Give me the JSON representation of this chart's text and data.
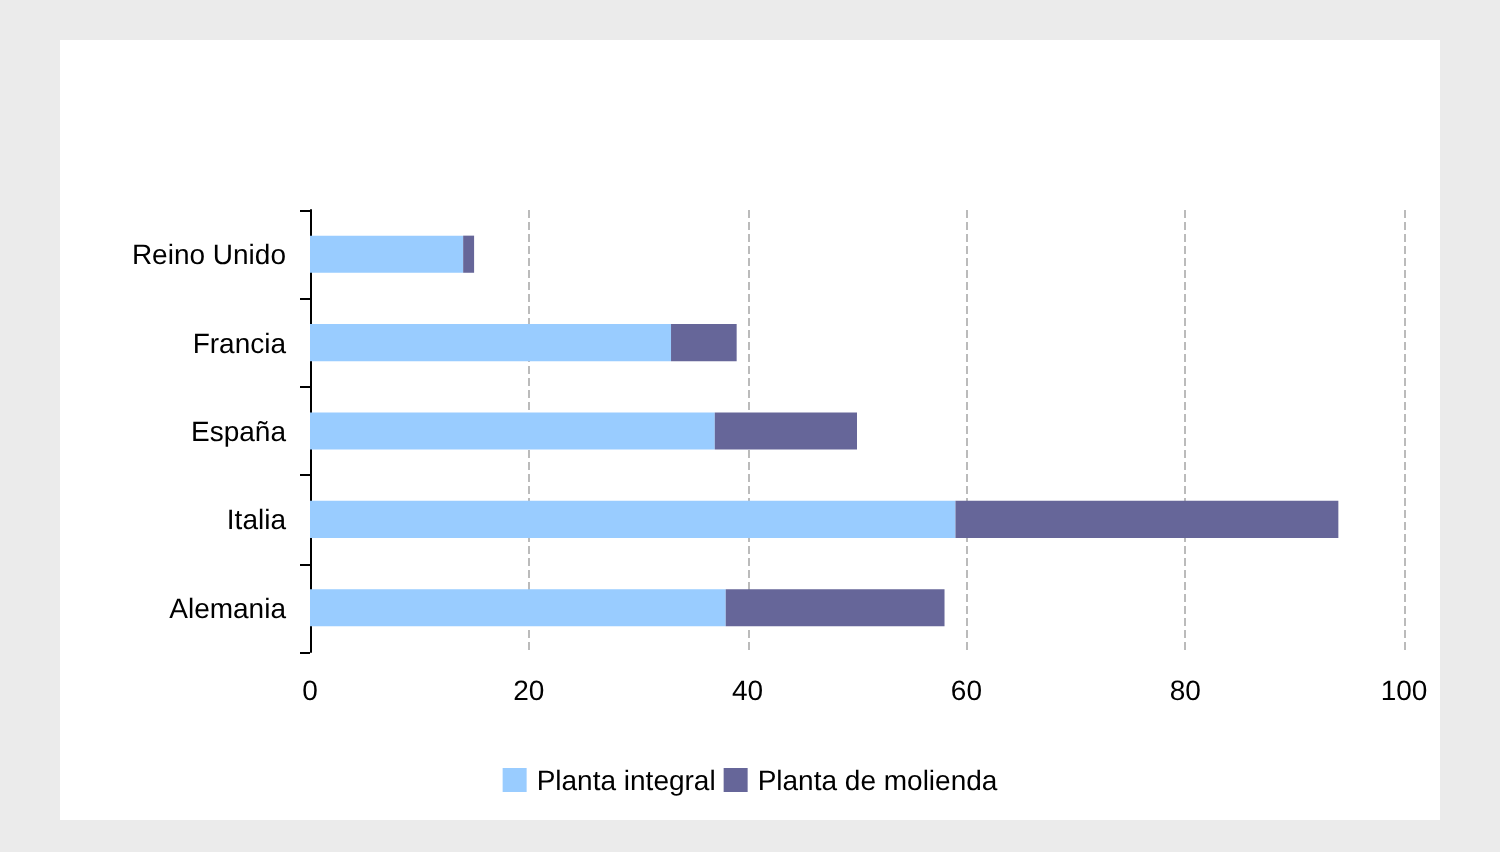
{
  "chart_data": {
    "type": "bar",
    "orientation": "horizontal",
    "stacked": true,
    "categories": [
      "Reino Unido",
      "Francia",
      "España",
      "Italia",
      "Alemania"
    ],
    "series": [
      {
        "name": "Planta integral",
        "color": "#99ccff",
        "values": [
          14,
          33,
          37,
          59,
          38
        ]
      },
      {
        "name": "Planta de molienda",
        "color": "#666699",
        "values": [
          1,
          6,
          13,
          35,
          20
        ]
      }
    ],
    "xlim": [
      0,
      100
    ],
    "xticks": [
      0,
      20,
      40,
      60,
      80,
      100
    ],
    "grid": "x",
    "legend": "bottom"
  }
}
